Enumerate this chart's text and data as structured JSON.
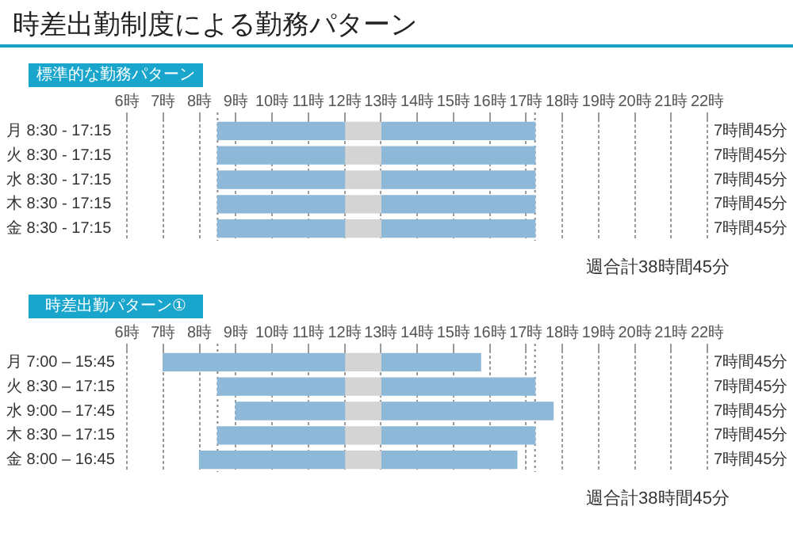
{
  "chart_data": [
    {
      "type": "bar",
      "orientation": "horizontal",
      "title": "時差出勤制度による勤務パターン",
      "subtitle": "標準的な勤務パターン",
      "categories": [
        "月 8:30 - 17:15",
        "火 8:30 - 17:15",
        "水 8:30 - 17:15",
        "木 8:30 - 17:15",
        "金 8:30 - 17:15"
      ],
      "series": [
        {
          "color": "#8db8d8",
          "base": [
            8.5,
            8.5,
            8.5,
            8.5,
            8.5
          ],
          "values": [
            3.5,
            3.5,
            3.5,
            3.5,
            3.5
          ]
        },
        {
          "color": "#d4d4d4",
          "base": [
            12,
            12,
            12,
            12,
            12
          ],
          "values": [
            1,
            1,
            1,
            1,
            1
          ]
        },
        {
          "color": "#8db8d8",
          "base": [
            13,
            13,
            13,
            13,
            13
          ],
          "values": [
            4.25,
            4.25,
            4.25,
            4.25,
            4.25
          ]
        }
      ],
      "xlim": [
        6,
        22
      ],
      "xticks": [
        {
          "value": 6,
          "label": "6時"
        },
        {
          "value": 7,
          "label": "7時"
        },
        {
          "value": 8,
          "label": "8時"
        },
        {
          "value": 9,
          "label": "9時"
        },
        {
          "value": 10,
          "label": "10時"
        },
        {
          "value": 11,
          "label": "11時"
        },
        {
          "value": 12,
          "label": "12時"
        },
        {
          "value": 13,
          "label": "13時"
        },
        {
          "value": 14,
          "label": "14時"
        },
        {
          "value": 15,
          "label": "15時"
        },
        {
          "value": 16,
          "label": "16時"
        },
        {
          "value": 17,
          "label": "17時"
        },
        {
          "value": 18,
          "label": "18時"
        },
        {
          "value": 19,
          "label": "19時"
        },
        {
          "value": 20,
          "label": "20時"
        },
        {
          "value": 21,
          "label": "21時"
        },
        {
          "value": 22,
          "label": "22時"
        }
      ],
      "grid": "x",
      "ref_lines": [
        {
          "axis": "x",
          "value": 8.5,
          "line_style": "dotted"
        },
        {
          "axis": "x",
          "value": 17.25,
          "line_style": "dotted"
        }
      ],
      "annotations": [
        "7時間45分",
        "7時間45分",
        "7時間45分",
        "7時間45分",
        "7時間45分",
        "週合計38時間45分"
      ]
    },
    {
      "type": "bar",
      "orientation": "horizontal",
      "title": "時差出勤パターン①",
      "categories": [
        "月 7:00 – 15:45",
        "火 8:30 – 17:15",
        "水 9:00 – 17:45",
        "木 8:30 – 17:15",
        "金 8:00 – 16:45"
      ],
      "series": [
        {
          "color": "#8db8d8",
          "base": [
            7,
            8.5,
            9,
            8.5,
            8
          ],
          "values": [
            5,
            3.5,
            3,
            3.5,
            4
          ]
        },
        {
          "color": "#d4d4d4",
          "base": [
            12,
            12,
            12,
            12,
            12
          ],
          "values": [
            1,
            1,
            1,
            1,
            1
          ]
        },
        {
          "color": "#8db8d8",
          "base": [
            13,
            13,
            13,
            13,
            13
          ],
          "values": [
            2.75,
            4.25,
            4.75,
            4.25,
            3.75
          ]
        }
      ],
      "xlim": [
        6,
        22
      ],
      "xticks": [
        {
          "value": 6,
          "label": "6時"
        },
        {
          "value": 7,
          "label": "7時"
        },
        {
          "value": 8,
          "label": "8時"
        },
        {
          "value": 9,
          "label": "9時"
        },
        {
          "value": 10,
          "label": "10時"
        },
        {
          "value": 11,
          "label": "11時"
        },
        {
          "value": 12,
          "label": "12時"
        },
        {
          "value": 13,
          "label": "13時"
        },
        {
          "value": 14,
          "label": "14時"
        },
        {
          "value": 15,
          "label": "15時"
        },
        {
          "value": 16,
          "label": "16時"
        },
        {
          "value": 17,
          "label": "17時"
        },
        {
          "value": 18,
          "label": "18時"
        },
        {
          "value": 19,
          "label": "19時"
        },
        {
          "value": 20,
          "label": "20時"
        },
        {
          "value": 21,
          "label": "21時"
        },
        {
          "value": 22,
          "label": "22時"
        }
      ],
      "grid": "x",
      "ref_lines": [
        {
          "axis": "x",
          "value": 8.5,
          "line_style": "dotted"
        },
        {
          "axis": "x",
          "value": 17.25,
          "line_style": "dotted"
        }
      ],
      "annotations": [
        "7時間45分",
        "7時間45分",
        "7時間45分",
        "7時間45分",
        "7時間45分",
        "週合計38時間45分"
      ]
    }
  ]
}
